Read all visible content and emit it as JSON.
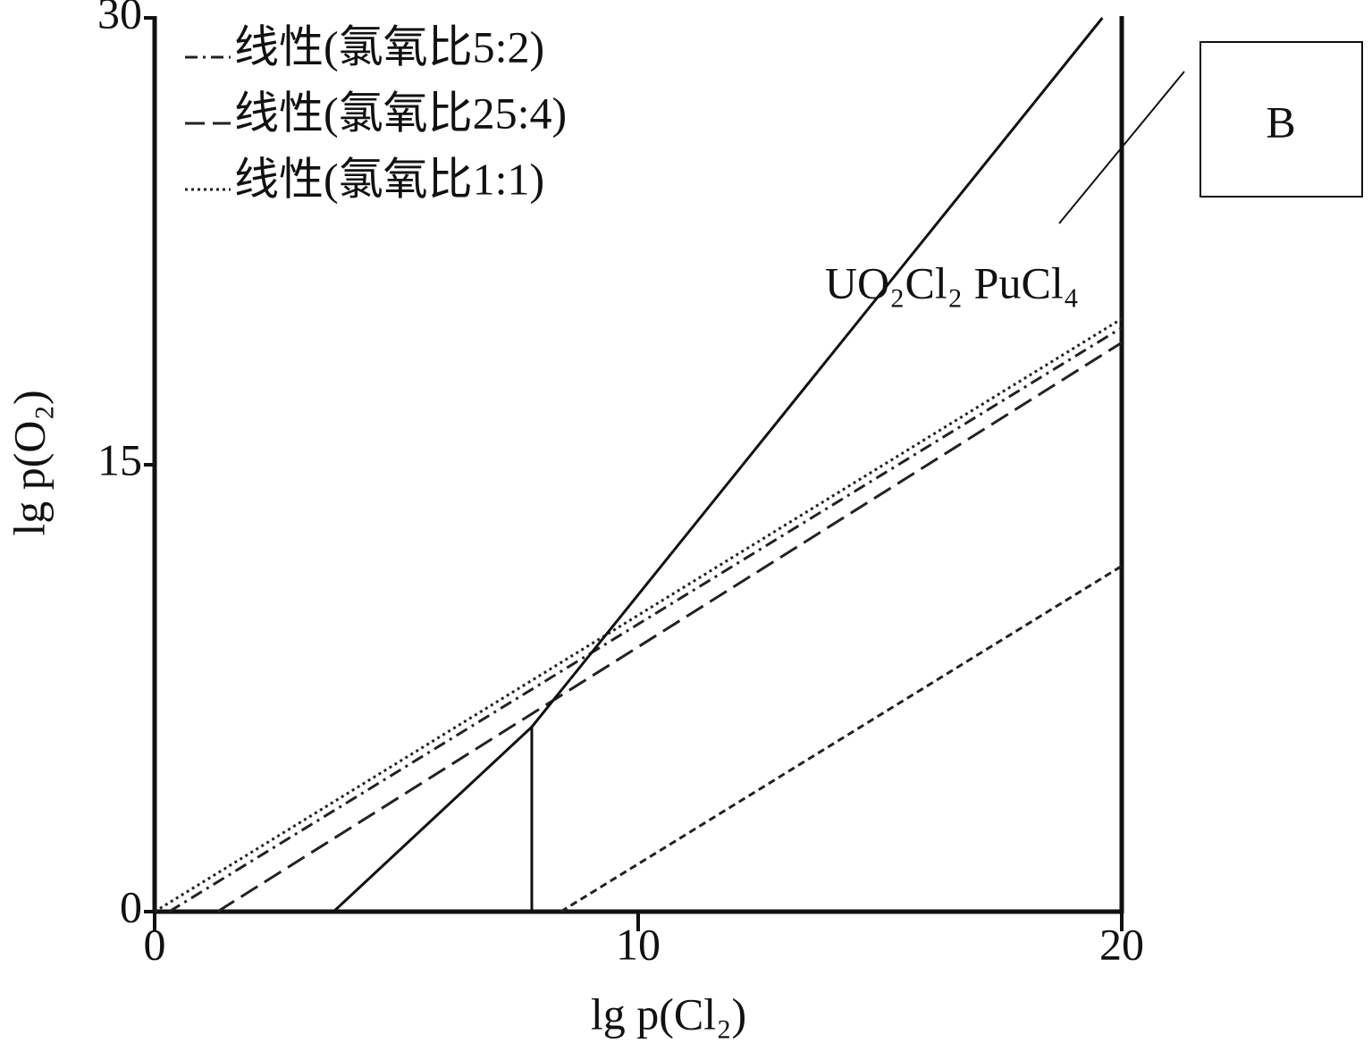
{
  "chart_data": {
    "type": "line",
    "xlabel": "lg p(Cl₂)",
    "ylabel": "lg p(O₂)",
    "xlim": [
      0,
      20
    ],
    "ylim": [
      0,
      30
    ],
    "xticks": [
      0,
      10,
      20
    ],
    "yticks": [
      0,
      15,
      30
    ],
    "annotations": [
      "UO₂Cl₂ PuCl₄",
      "B"
    ],
    "legend": "upper left",
    "series": [
      {
        "name": "线性(氯氧比5:2)",
        "color": "#222222",
        "dash": "14 6 3 6",
        "x": [
          0.3,
          20
        ],
        "values": [
          0,
          19.6
        ]
      },
      {
        "name": "线性(氯氧比25:4)",
        "color": "#222222",
        "dash": "22 9",
        "x": [
          1.3,
          20
        ],
        "values": [
          0,
          19.1
        ]
      },
      {
        "name": "线性(氯氧比1:1)",
        "color": "#222222",
        "dash": "3 4",
        "x": [
          0,
          20
        ],
        "values": [
          0,
          19.9
        ]
      },
      {
        "color": "#111111",
        "dash": "none",
        "x": [
          3.7,
          7.8,
          19.6
        ],
        "values": [
          0,
          6.2,
          30
        ]
      },
      {
        "color": "#111111",
        "dash": "none",
        "x": [
          7.8,
          7.8
        ],
        "values": [
          0,
          6.2
        ]
      },
      {
        "color": "#222222",
        "dash": "8 5",
        "x": [
          8.4,
          20
        ],
        "values": [
          0,
          11.6
        ]
      }
    ]
  }
}
